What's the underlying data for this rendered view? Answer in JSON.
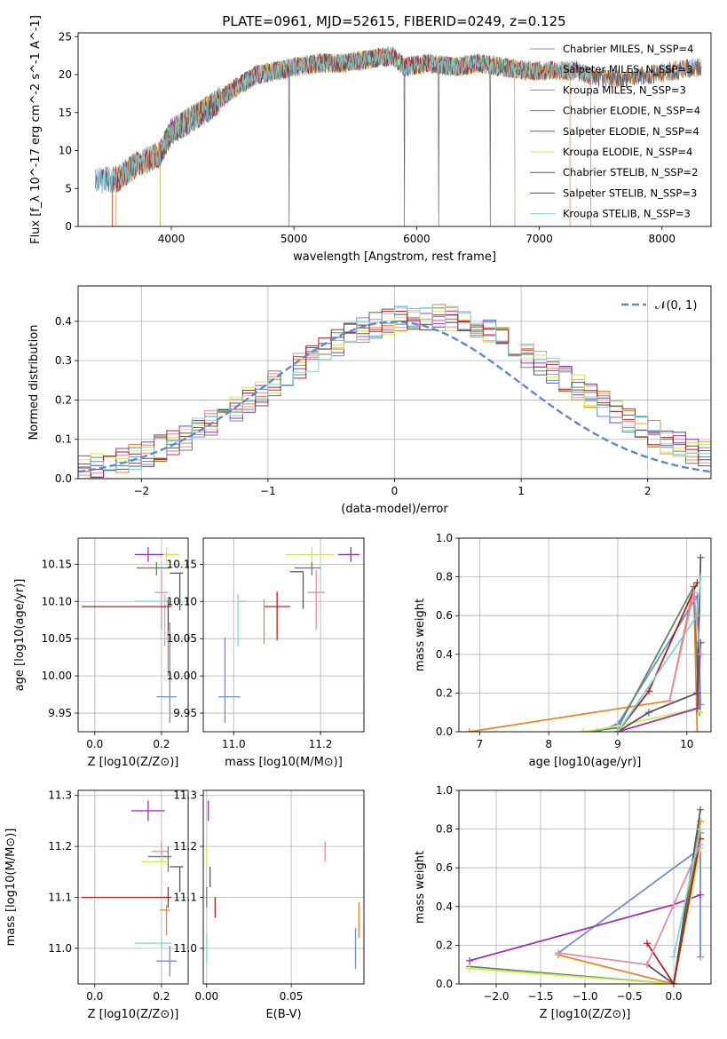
{
  "title": "PLATE=0961, MJD=52615, FIBERID=0249, z=0.125",
  "chart_data": [
    {
      "id": "spectrum",
      "type": "line",
      "xlabel": "wavelength [Angstrom, rest frame]",
      "ylabel": "Flux [f_λ 10^-17 erg cm^-2 s^-1 A^-1]",
      "xlim": [
        3240,
        8400
      ],
      "ylim": [
        0,
        25.5
      ],
      "xticks": [
        4000,
        5000,
        6000,
        7000,
        8000
      ],
      "yticks": [
        0,
        5,
        10,
        15,
        20,
        25
      ],
      "grid": false,
      "legend_position": "top-right",
      "spectrum_shape": {
        "x": [
          3380,
          3560,
          3700,
          3900,
          4000,
          4150,
          4300,
          4500,
          4700,
          4860,
          5000,
          5200,
          5400,
          5600,
          5800,
          5900,
          6100,
          6300,
          6500,
          6700,
          6900,
          7100,
          7300,
          7500,
          7700,
          7900,
          8100,
          8320
        ],
        "y": [
          6,
          6.2,
          8,
          9.5,
          12.5,
          14,
          15.5,
          18,
          20,
          20.5,
          21,
          21.5,
          21.5,
          22,
          22.5,
          21,
          21.5,
          21,
          21.5,
          21,
          20.5,
          20.5,
          20.5,
          19.5,
          19.5,
          20,
          20.5,
          21
        ]
      },
      "series": [
        {
          "name": "Chabrier MILES, N_SSP=4",
          "color": "#6a8fd6",
          "x_start": 3380,
          "x_end": 8320
        },
        {
          "name": "Salpeter MILES, N_SSP=3",
          "color": "#e8872a",
          "x_start": 3520,
          "x_end": 8320
        },
        {
          "name": "Kroupa MILES, N_SSP=3",
          "color": "#d27d25",
          "x_start": 3550,
          "x_end": 7250
        },
        {
          "name": "Chabrier ELODIE, N_SSP=4",
          "color": "#5f8a5f",
          "x_start": 3910,
          "x_end": 6800
        },
        {
          "name": "Salpeter ELODIE, N_SSP=4",
          "color": "#9b34b6",
          "x_start": 3910,
          "x_end": 6800
        },
        {
          "name": "Kroupa ELODIE, N_SSP=4",
          "color": "#d4e85a",
          "x_start": 3910,
          "x_end": 6800
        },
        {
          "name": "Chabrier STELIB, N_SSP=2",
          "color": "#555555",
          "x_start": 3380,
          "x_end": 8320
        },
        {
          "name": "Salpeter STELIB, N_SSP=3",
          "color": "#b22222",
          "x_start": 3520,
          "x_end": 7420
        },
        {
          "name": "Kroupa STELIB, N_SSP=3",
          "color": "#7fd4d8",
          "x_start": 3380,
          "x_end": 7420
        }
      ]
    },
    {
      "id": "residuals",
      "type": "bar",
      "xlabel": "(data-model)/error",
      "ylabel": "Normed distribution",
      "xlim": [
        -2.5,
        2.5
      ],
      "ylim": [
        0,
        0.49
      ],
      "xticks": [
        -2,
        -1,
        0,
        1,
        2
      ],
      "yticks": [
        0.0,
        0.1,
        0.2,
        0.3,
        0.4
      ],
      "grid": true,
      "legend_position": "top-right",
      "legend_label": "𝒩(0, 1)",
      "curve_color": "#5b87d6",
      "bin_width": 0.1,
      "bin_start": -2.5,
      "histograms": [
        {
          "color": "#6a8fd6",
          "seed": 1
        },
        {
          "color": "#e8872a",
          "seed": 2
        },
        {
          "color": "#e48bb4",
          "seed": 3
        },
        {
          "color": "#5f8a5f",
          "seed": 4
        },
        {
          "color": "#9b34b6",
          "seed": 5
        },
        {
          "color": "#d4e85a",
          "seed": 6
        },
        {
          "color": "#555555",
          "seed": 7
        },
        {
          "color": "#b22222",
          "seed": 8
        },
        {
          "color": "#7fd4d8",
          "seed": 9
        }
      ]
    },
    {
      "id": "age_vs_Z",
      "type": "scatter",
      "xlabel": "Z [log10(Z/Z⊙)]",
      "ylabel": "age  [log10(age/yr)]",
      "xlim": [
        -0.05,
        0.28
      ],
      "ylim": [
        9.925,
        10.185
      ],
      "xticks": [
        0.0,
        0.2
      ],
      "yticks": [
        9.95,
        10.0,
        10.05,
        10.1,
        10.15
      ],
      "grid": true,
      "points": [
        {
          "x": 0.16,
          "y": 10.163,
          "xerr": [
            0.04,
            0.07
          ],
          "yerr": [
            0.01,
            0.01
          ],
          "color": "#9b34b6"
        },
        {
          "x": 0.215,
          "y": 10.163,
          "xerr": [
            0.01,
            0.04
          ],
          "yerr": [
            0.015,
            0.01
          ],
          "color": "#d4e85a"
        },
        {
          "x": 0.185,
          "y": 10.145,
          "xerr": [
            0.06,
            0.04
          ],
          "yerr": [
            0.01,
            0.008
          ],
          "color": "#5f8a5f"
        },
        {
          "x": 0.255,
          "y": 10.138,
          "xerr": [
            0.03,
            0.01
          ],
          "yerr": [
            0.05,
            0.0
          ],
          "color": "#555555"
        },
        {
          "x": 0.2,
          "y": 10.112,
          "xerr": [
            0.02,
            0.02
          ],
          "yerr": [
            0.05,
            0.03
          ],
          "color": "#e48bb4"
        },
        {
          "x": 0.21,
          "y": 10.1,
          "xerr": [
            0.09,
            0.01
          ],
          "yerr": [
            0.06,
            0.01
          ],
          "color": "#7fd4d8"
        },
        {
          "x": 0.22,
          "y": 10.093,
          "xerr": [
            0.26,
            0.01
          ],
          "yerr": [
            0.045,
            0.01
          ],
          "color": "#b22222"
        },
        {
          "x": 0.22,
          "y": 10.05,
          "xerr": [
            0.0,
            0.0
          ],
          "yerr": [
            0.05,
            0.01
          ],
          "color": "#e8872a"
        },
        {
          "x": 0.225,
          "y": 9.972,
          "xerr": [
            0.04,
            0.02
          ],
          "yerr": [
            0.035,
            0.1
          ],
          "color": "#6a8fd6"
        }
      ]
    },
    {
      "id": "age_vs_mass",
      "type": "scatter",
      "xlabel": "mass [log10(M/M⊙)]",
      "ylabel": "",
      "xlim": [
        10.93,
        11.3
      ],
      "ylim": [
        9.925,
        10.185
      ],
      "xticks": [
        11.0,
        11.2
      ],
      "yticks": [
        9.95,
        10.0,
        10.05,
        10.1,
        10.15
      ],
      "grid": true,
      "points": [
        {
          "x": 11.27,
          "y": 10.163,
          "xerr": [
            0.03,
            0.02
          ],
          "yerr": [
            0.01,
            0.01
          ],
          "color": "#9b34b6"
        },
        {
          "x": 11.18,
          "y": 10.163,
          "xerr": [
            0.06,
            0.05
          ],
          "yerr": [
            0.015,
            0.01
          ],
          "color": "#d4e85a"
        },
        {
          "x": 11.18,
          "y": 10.145,
          "xerr": [
            0.04,
            0.02
          ],
          "yerr": [
            0.01,
            0.008
          ],
          "color": "#5f8a5f"
        },
        {
          "x": 11.16,
          "y": 10.14,
          "xerr": [
            0.03,
            0.0
          ],
          "yerr": [
            0.05,
            0.0
          ],
          "color": "#555555"
        },
        {
          "x": 11.19,
          "y": 10.112,
          "xerr": [
            0.02,
            0.02
          ],
          "yerr": [
            0.05,
            0.03
          ],
          "color": "#e48bb4"
        },
        {
          "x": 11.01,
          "y": 10.1,
          "xerr": [
            0.0,
            0.02
          ],
          "yerr": [
            0.06,
            0.01
          ],
          "color": "#7fd4d8"
        },
        {
          "x": 11.1,
          "y": 10.093,
          "xerr": [
            0.03,
            0.03
          ],
          "yerr": [
            0.045,
            0.02
          ],
          "color": "#b22222"
        },
        {
          "x": 11.07,
          "y": 10.093,
          "xerr": [
            0.0,
            0.0
          ],
          "yerr": [
            0.05,
            0.01
          ],
          "color": "#e8872a"
        },
        {
          "x": 10.98,
          "y": 9.972,
          "xerr": [
            0.015,
            0.035
          ],
          "yerr": [
            0.035,
            0.08
          ],
          "color": "#6a8fd6"
        }
      ]
    },
    {
      "id": "massweight_vs_age",
      "type": "line",
      "xlabel": "age  [log10(age/yr)]",
      "ylabel": "mass weight",
      "xlim": [
        6.7,
        10.35
      ],
      "ylim": [
        0,
        1.0
      ],
      "xticks": [
        7,
        8,
        9,
        10
      ],
      "yticks": [
        0.0,
        0.2,
        0.4,
        0.6,
        0.8,
        1.0
      ],
      "grid": true,
      "series": [
        {
          "color": "#e8872a",
          "x": [
            6.85,
            9.75,
            10.1,
            10.15
          ],
          "y": [
            0.0,
            0.16,
            0.75,
            0.0
          ]
        },
        {
          "color": "#6a8fd6",
          "x": [
            8.7,
            9.0,
            10.15,
            10.2
          ],
          "y": [
            0.0,
            0.04,
            0.7,
            0.14
          ]
        },
        {
          "color": "#5f8a5f",
          "x": [
            8.5,
            9.0,
            10.1,
            10.18
          ],
          "y": [
            0.0,
            0.02,
            0.75,
            0.1
          ]
        },
        {
          "color": "#d4e85a",
          "x": [
            8.5,
            9.0,
            10.15,
            10.2
          ],
          "y": [
            0.0,
            0.03,
            0.12,
            0.1
          ]
        },
        {
          "color": "#9b34b6",
          "x": [
            9.0,
            10.15,
            10.2
          ],
          "y": [
            0.0,
            0.12,
            0.46
          ]
        },
        {
          "color": "#555555",
          "x": [
            9.0,
            9.45,
            10.15,
            10.2
          ],
          "y": [
            0.0,
            0.1,
            0.2,
            0.9
          ]
        },
        {
          "color": "#b22222",
          "x": [
            9.0,
            9.45,
            10.15
          ],
          "y": [
            0.0,
            0.21,
            0.77
          ]
        },
        {
          "color": "#7fd4d8",
          "x": [
            9.0,
            10.15,
            10.2
          ],
          "y": [
            0.0,
            0.6,
            0.8
          ]
        },
        {
          "color": "#e48bb4",
          "x": [
            9.75,
            10.1,
            10.2
          ],
          "y": [
            0.16,
            0.72,
            0.4
          ]
        }
      ]
    },
    {
      "id": "mass_vs_Z",
      "type": "scatter",
      "xlabel": "Z [log10(Z/Z⊙)]",
      "ylabel": "mass [log10(M/M⊙)]",
      "xlim": [
        -0.05,
        0.28
      ],
      "ylim": [
        10.93,
        11.31
      ],
      "xticks": [
        0.0,
        0.2
      ],
      "yticks": [
        11.0,
        11.1,
        11.2,
        11.3
      ],
      "grid": true,
      "points": [
        {
          "x": 0.16,
          "y": 11.27,
          "xerr": [
            0.05,
            0.05
          ],
          "yerr": [
            0.02,
            0.02
          ],
          "color": "#9b34b6"
        },
        {
          "x": 0.2,
          "y": 11.19,
          "xerr": [
            0.03,
            0.02
          ],
          "yerr": [
            0.02,
            0.02
          ],
          "color": "#e48bb4"
        },
        {
          "x": 0.22,
          "y": 11.18,
          "xerr": [
            0.06,
            0.01
          ],
          "yerr": [
            0.03,
            0.02
          ],
          "color": "#5f8a5f"
        },
        {
          "x": 0.2,
          "y": 11.17,
          "xerr": [
            0.06,
            0.02
          ],
          "yerr": [
            0.01,
            0.01
          ],
          "color": "#d4e85a"
        },
        {
          "x": 0.255,
          "y": 11.16,
          "xerr": [
            0.03,
            0.01
          ],
          "yerr": [
            0.05,
            0.0
          ],
          "color": "#555555"
        },
        {
          "x": 0.22,
          "y": 11.1,
          "xerr": [
            0.26,
            0.01
          ],
          "yerr": [
            0.02,
            0.02
          ],
          "color": "#b22222"
        },
        {
          "x": 0.215,
          "y": 11.075,
          "xerr": [
            0.02,
            0.01
          ],
          "yerr": [
            0.05,
            0.01
          ],
          "color": "#e8872a"
        },
        {
          "x": 0.2,
          "y": 11.01,
          "xerr": [
            0.08,
            0.03
          ],
          "yerr": [
            0.01,
            0.01
          ],
          "color": "#7fd4d8"
        },
        {
          "x": 0.225,
          "y": 10.975,
          "xerr": [
            0.04,
            0.02
          ],
          "yerr": [
            0.03,
            0.03
          ],
          "color": "#6a8fd6"
        }
      ]
    },
    {
      "id": "mass_vs_ebv",
      "type": "scatter",
      "xlabel": "E(B-V)",
      "ylabel": "",
      "xlim": [
        -0.002,
        0.093
      ],
      "ylim": [
        10.93,
        11.31
      ],
      "xticks": [
        0.0,
        0.05
      ],
      "yticks": [
        11.0,
        11.1,
        11.2,
        11.3
      ],
      "grid": true,
      "points": [
        {
          "x": 0.001,
          "y": 11.27,
          "xerr": [
            0,
            0
          ],
          "yerr": [
            0.02,
            0.02
          ],
          "color": "#9b34b6"
        },
        {
          "x": 0.07,
          "y": 11.19,
          "xerr": [
            0,
            0
          ],
          "yerr": [
            0.02,
            0.02
          ],
          "color": "#e48bb4"
        },
        {
          "x": 0.0,
          "y": 11.18,
          "xerr": [
            0,
            0
          ],
          "yerr": [
            0.02,
            0.02
          ],
          "color": "#d4e85a"
        },
        {
          "x": 0.002,
          "y": 11.14,
          "xerr": [
            0,
            0
          ],
          "yerr": [
            0.02,
            0.02
          ],
          "color": "#555555"
        },
        {
          "x": 0.005,
          "y": 11.1,
          "xerr": [
            0,
            0
          ],
          "yerr": [
            0.04,
            0.0
          ],
          "color": "#b22222"
        },
        {
          "x": 0.0,
          "y": 11.1,
          "xerr": [
            0,
            0
          ],
          "yerr": [
            0.02,
            0.02
          ],
          "color": "#5f8a5f"
        },
        {
          "x": 0.09,
          "y": 11.05,
          "xerr": [
            0,
            0
          ],
          "yerr": [
            0.03,
            0.04
          ],
          "color": "#e8872a"
        },
        {
          "x": 0.088,
          "y": 11.0,
          "xerr": [
            0,
            0
          ],
          "yerr": [
            0.04,
            0.04
          ],
          "color": "#6a8fd6"
        },
        {
          "x": 0.0,
          "y": 11.0,
          "xerr": [
            0,
            0
          ],
          "yerr": [
            0.03,
            0.03
          ],
          "color": "#7fd4d8"
        }
      ]
    },
    {
      "id": "massweight_vs_Z",
      "type": "line",
      "xlabel": "Z [log10(Z/Z⊙)]",
      "ylabel": "mass weight",
      "xlim": [
        -2.42,
        0.42
      ],
      "ylim": [
        0,
        1.0
      ],
      "xticks": [
        -2.0,
        -1.5,
        -1.0,
        -0.5,
        0.0
      ],
      "yticks": [
        0.0,
        0.2,
        0.4,
        0.6,
        0.8,
        1.0
      ],
      "grid": true,
      "series": [
        {
          "color": "#6a8fd6",
          "x": [
            -1.3,
            0.3,
            0.3
          ],
          "y": [
            0.16,
            0.7,
            0.14
          ]
        },
        {
          "color": "#e8872a",
          "x": [
            -1.3,
            0.0,
            0.3
          ],
          "y": [
            0.15,
            0.0,
            0.84
          ]
        },
        {
          "color": "#9b34b6",
          "x": [
            -2.3,
            0.0,
            0.3
          ],
          "y": [
            0.12,
            0.41,
            0.46
          ]
        },
        {
          "color": "#5f8a5f",
          "x": [
            -2.3,
            0.0,
            0.3
          ],
          "y": [
            0.09,
            0.0,
            0.78
          ]
        },
        {
          "color": "#d4e85a",
          "x": [
            -2.3,
            0.0,
            0.3
          ],
          "y": [
            0.08,
            0.0,
            0.7
          ]
        },
        {
          "color": "#555555",
          "x": [
            -0.3,
            0.0,
            0.3
          ],
          "y": [
            0.1,
            0.0,
            0.9
          ]
        },
        {
          "color": "#b22222",
          "x": [
            -0.3,
            0.0,
            0.3
          ],
          "y": [
            0.21,
            0.0,
            0.75
          ]
        },
        {
          "color": "#e48bb4",
          "x": [
            -1.3,
            -0.3,
            0.0,
            0.3
          ],
          "y": [
            0.16,
            0.1,
            0.41,
            0.72
          ]
        },
        {
          "color": "#7fd4d8",
          "x": [
            0.0,
            0.3
          ],
          "y": [
            0.14,
            0.8
          ]
        }
      ]
    }
  ]
}
